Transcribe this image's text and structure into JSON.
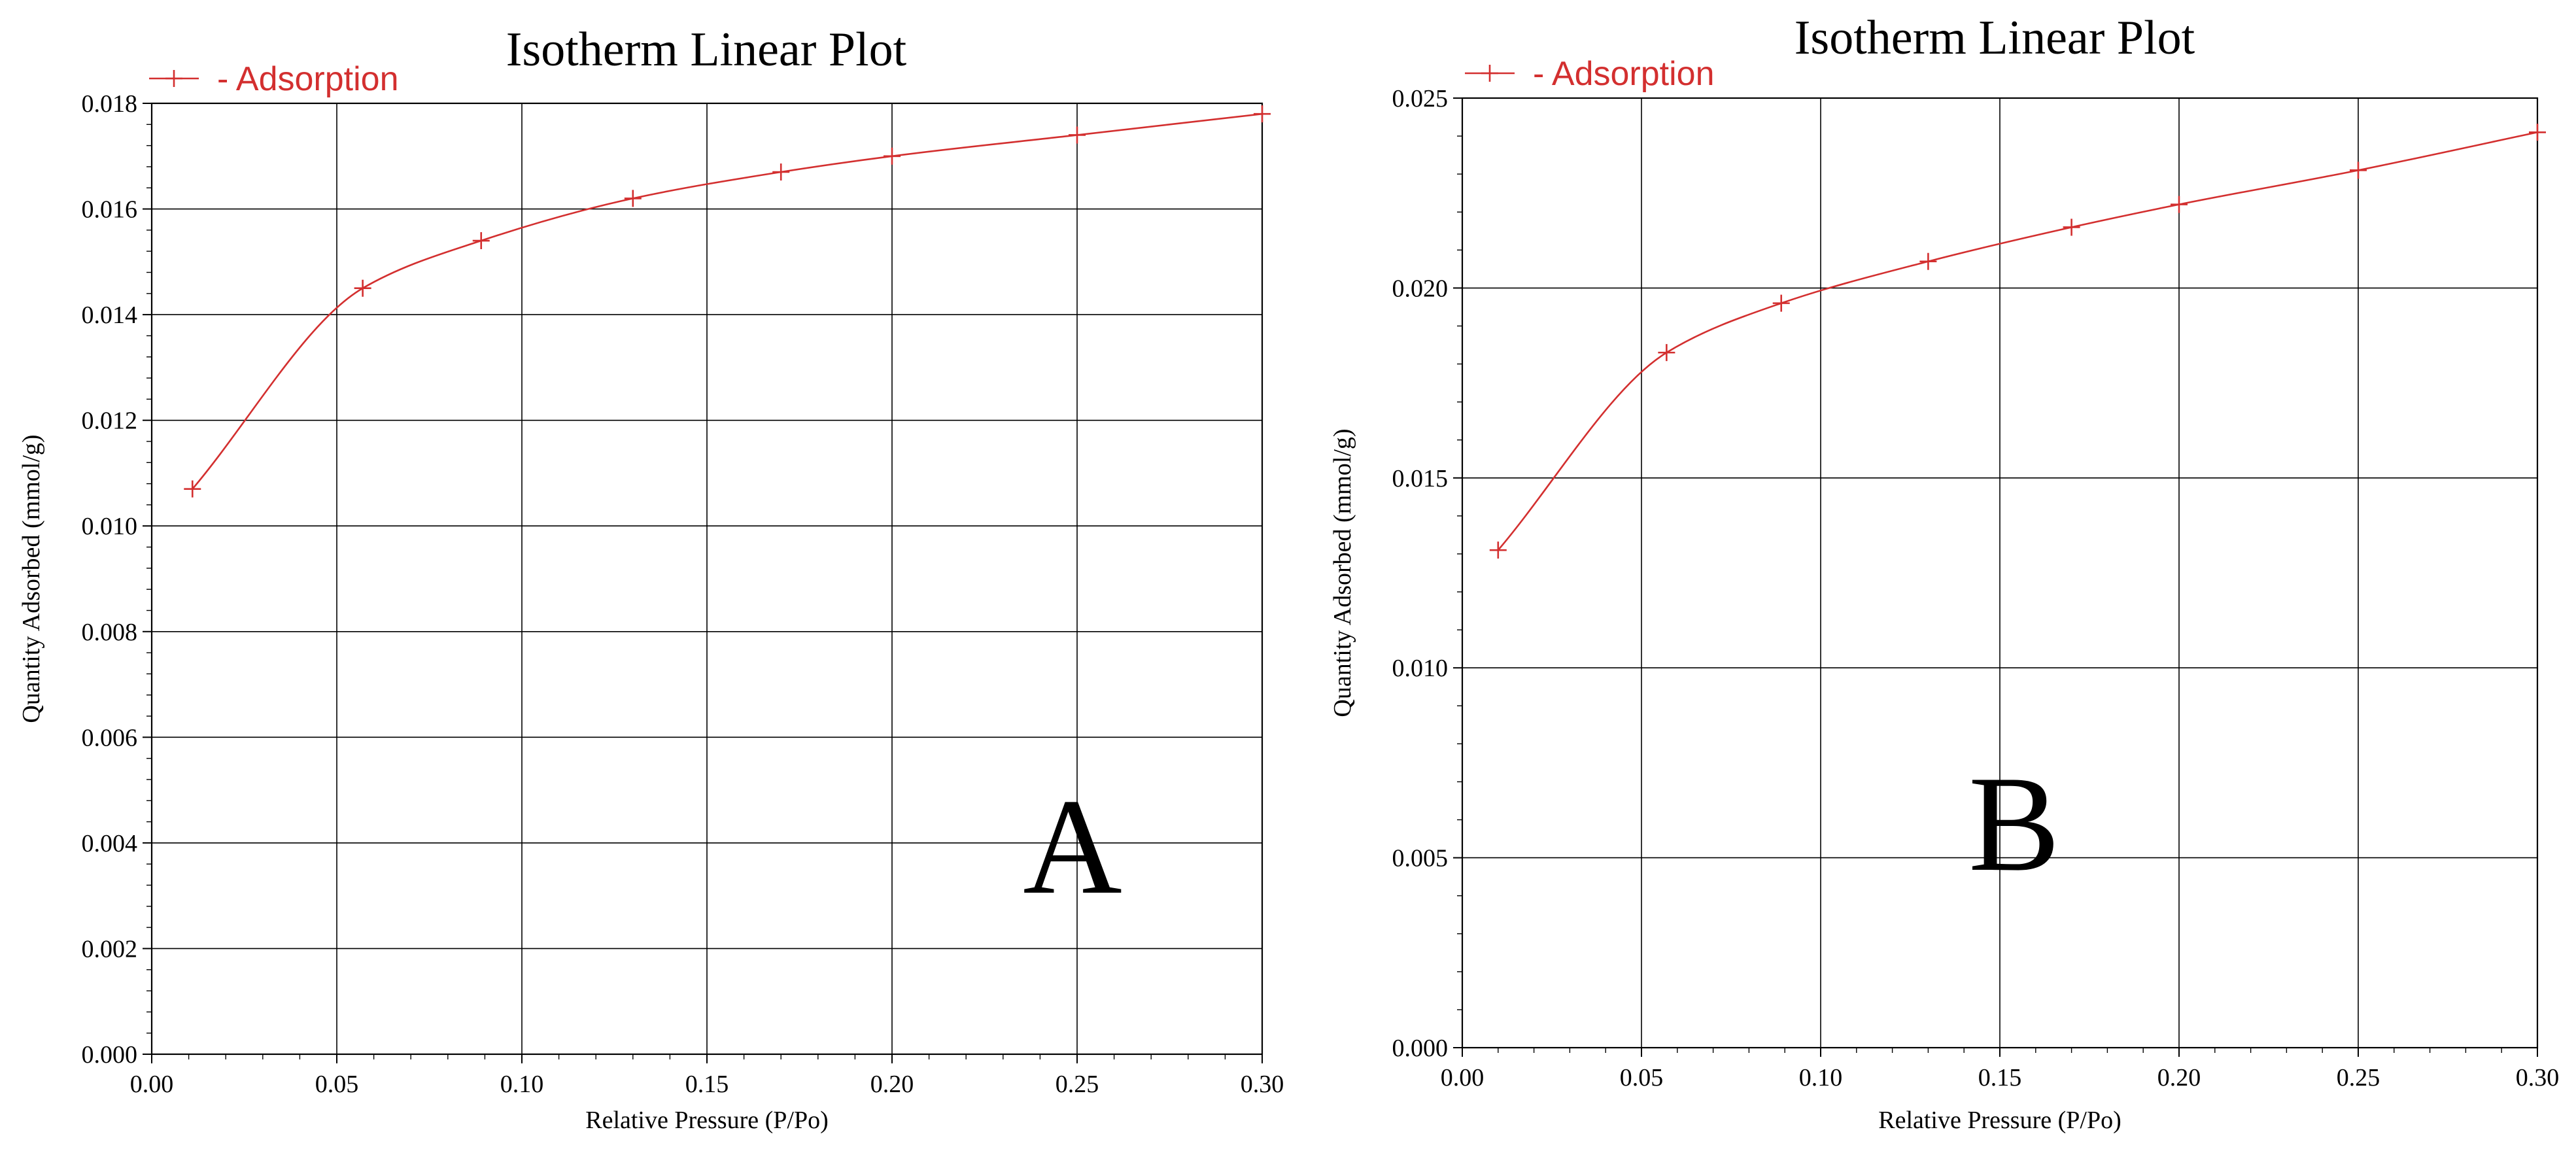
{
  "colors": {
    "series": "#d32f2f",
    "grid": "#000000",
    "background": "#ffffff"
  },
  "chart_data": [
    {
      "type": "line",
      "panel_label": "A",
      "title": "Isotherm Linear Plot",
      "xlabel": "Relative Pressure (P/Po)",
      "ylabel": "Quantity Adsorbed (mmol/g)",
      "xlim": [
        0,
        0.3
      ],
      "ylim": [
        0,
        0.018
      ],
      "grid": true,
      "legend_position": "top-left",
      "x_ticks": [
        "0.00",
        "0.05",
        "0.10",
        "0.15",
        "0.20",
        "0.25",
        "0.30"
      ],
      "y_ticks": [
        "0.000",
        "0.002",
        "0.004",
        "0.006",
        "0.008",
        "0.010",
        "0.012",
        "0.014",
        "0.016",
        "0.018"
      ],
      "series": [
        {
          "name": "- Adsorption",
          "marker": "+",
          "color": "#d32f2f",
          "x": [
            0.011,
            0.057,
            0.089,
            0.13,
            0.17,
            0.2,
            0.25,
            0.3
          ],
          "y": [
            0.0107,
            0.0145,
            0.0154,
            0.0162,
            0.0167,
            0.017,
            0.0174,
            0.0178
          ]
        }
      ]
    },
    {
      "type": "line",
      "panel_label": "B",
      "title": "Isotherm Linear Plot",
      "xlabel": "Relative Pressure (P/Po)",
      "ylabel": "Quantity Adsorbed (mmol/g)",
      "xlim": [
        0,
        0.3
      ],
      "ylim": [
        0,
        0.025
      ],
      "grid": true,
      "legend_position": "top-left",
      "x_ticks": [
        "0.00",
        "0.05",
        "0.10",
        "0.15",
        "0.20",
        "0.25",
        "0.30"
      ],
      "y_ticks": [
        "0.000",
        "0.005",
        "0.010",
        "0.015",
        "0.020",
        "0.025"
      ],
      "series": [
        {
          "name": "- Adsorption",
          "marker": "+",
          "color": "#d32f2f",
          "x": [
            0.01,
            0.057,
            0.089,
            0.13,
            0.17,
            0.2,
            0.25,
            0.3
          ],
          "y": [
            0.0131,
            0.0183,
            0.0196,
            0.0207,
            0.0216,
            0.0222,
            0.0231,
            0.0241
          ]
        }
      ]
    }
  ]
}
